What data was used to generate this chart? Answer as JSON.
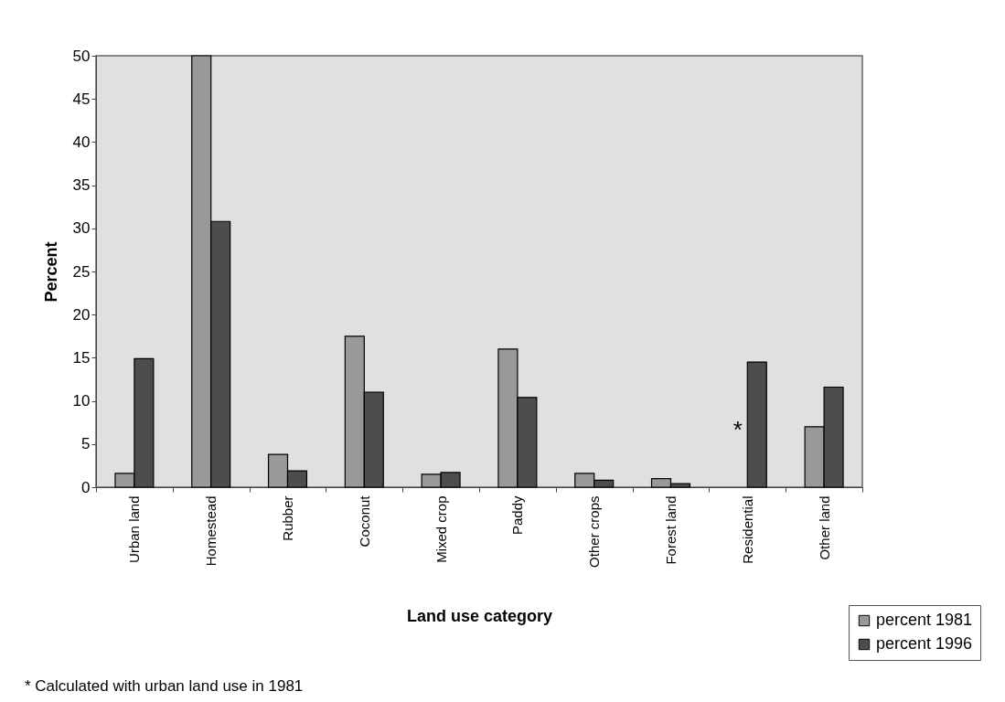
{
  "chart_data": {
    "type": "bar",
    "xlabel": "Land use category",
    "ylabel": "Percent",
    "categories": [
      "Urban land",
      "Homestead",
      "Rubber",
      "Coconut",
      "Mixed crop",
      "Paddy",
      "Other crops",
      "Forest land",
      "Residential",
      "Other land"
    ],
    "series": [
      {
        "name": "percent 1981",
        "color": "#999999",
        "values": [
          1.6,
          50,
          3.8,
          17.5,
          1.5,
          16,
          1.6,
          1.0,
          null,
          7
        ]
      },
      {
        "name": "percent 1996",
        "color": "#4d4d4d",
        "values": [
          14.9,
          30.8,
          1.9,
          11,
          1.7,
          10.4,
          0.8,
          0.4,
          14.5,
          11.6
        ]
      }
    ],
    "ylim": [
      0,
      50
    ],
    "yticks": [
      0,
      5,
      10,
      15,
      20,
      25,
      30,
      35,
      40,
      45,
      50
    ],
    "legend": "bottom right",
    "annotations": [
      {
        "text": "*",
        "x": "Residential",
        "y": 7
      },
      "*  Calculated with urban land use in 1981"
    ]
  }
}
